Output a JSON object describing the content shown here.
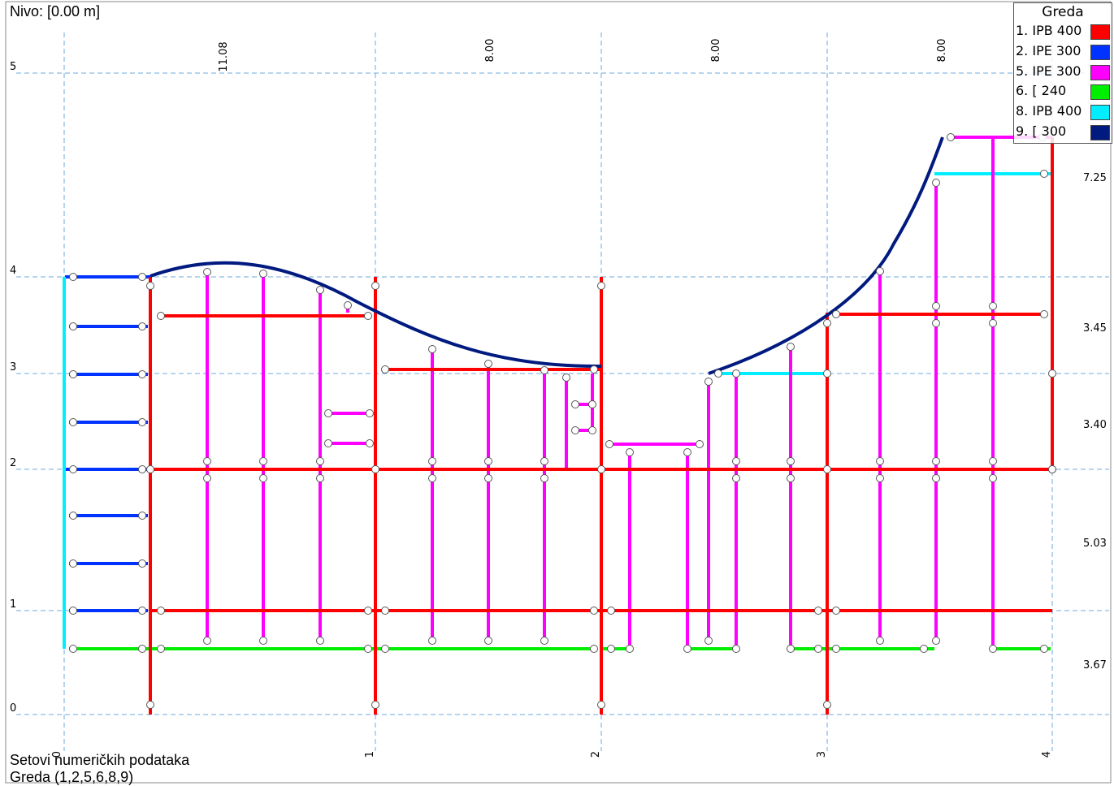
{
  "level_label": "Nivo: [0.00 m]",
  "legend": {
    "title": "Greda",
    "items": [
      {
        "label": "1. IPB 400",
        "color": "#ff0000"
      },
      {
        "label": "2. IPE 300",
        "color": "#0033ff"
      },
      {
        "label": "5. IPE 300",
        "color": "#ff00ff"
      },
      {
        "label": "6. [ 240",
        "color": "#00ee00"
      },
      {
        "label": "8. IPB 400",
        "color": "#00eeff"
      },
      {
        "label": "9. [ 300",
        "color": "#001a80"
      }
    ]
  },
  "axes_x": [
    "0",
    "1",
    "2",
    "3",
    "4"
  ],
  "axes_y": [
    "0",
    "1",
    "2",
    "3",
    "4",
    "5"
  ],
  "dims_top": [
    "11.08",
    "8.00",
    "8.00",
    "8.00"
  ],
  "dims_right": [
    "7.25",
    "3.45",
    "3.40",
    "5.03",
    "3.67"
  ],
  "footer": {
    "line1": "Setovi numeričkih podataka",
    "line2": "Greda (1,2,5,6,8,9)"
  }
}
